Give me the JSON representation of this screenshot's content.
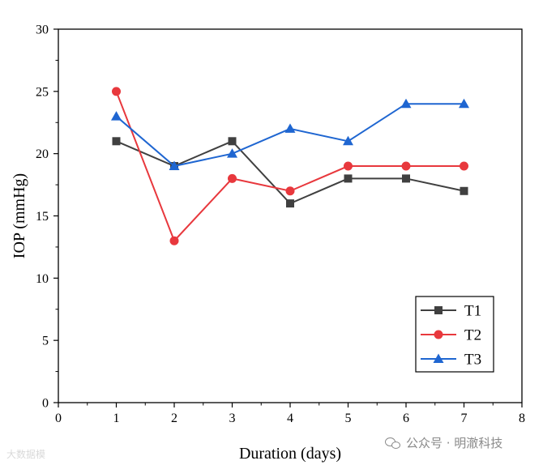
{
  "chart_data": {
    "type": "line",
    "title": "",
    "xlabel": "Duration (days)",
    "ylabel": "IOP (mmHg)",
    "xlim": [
      0,
      8
    ],
    "ylim": [
      0,
      30
    ],
    "xticks": [
      0,
      1,
      2,
      3,
      4,
      5,
      6,
      7,
      8
    ],
    "yticks": [
      0,
      5,
      10,
      15,
      20,
      25,
      30
    ],
    "grid": false,
    "legend_position": "bottom-right",
    "x": [
      1,
      2,
      3,
      4,
      5,
      6,
      7
    ],
    "series": [
      {
        "name": "T1",
        "color": "#404040",
        "marker": "square",
        "values": [
          21,
          19,
          21,
          16,
          18,
          18,
          17
        ]
      },
      {
        "name": "T2",
        "color": "#e8383d",
        "marker": "circle",
        "values": [
          25,
          13,
          18,
          17,
          19,
          19,
          19
        ]
      },
      {
        "name": "T3",
        "color": "#1f66d1",
        "marker": "triangle",
        "values": [
          23,
          19,
          20,
          22,
          21,
          24,
          24
        ]
      }
    ]
  },
  "watermark": {
    "left_text": "大数据模",
    "right_text": "公众号 · 明澈科技"
  }
}
